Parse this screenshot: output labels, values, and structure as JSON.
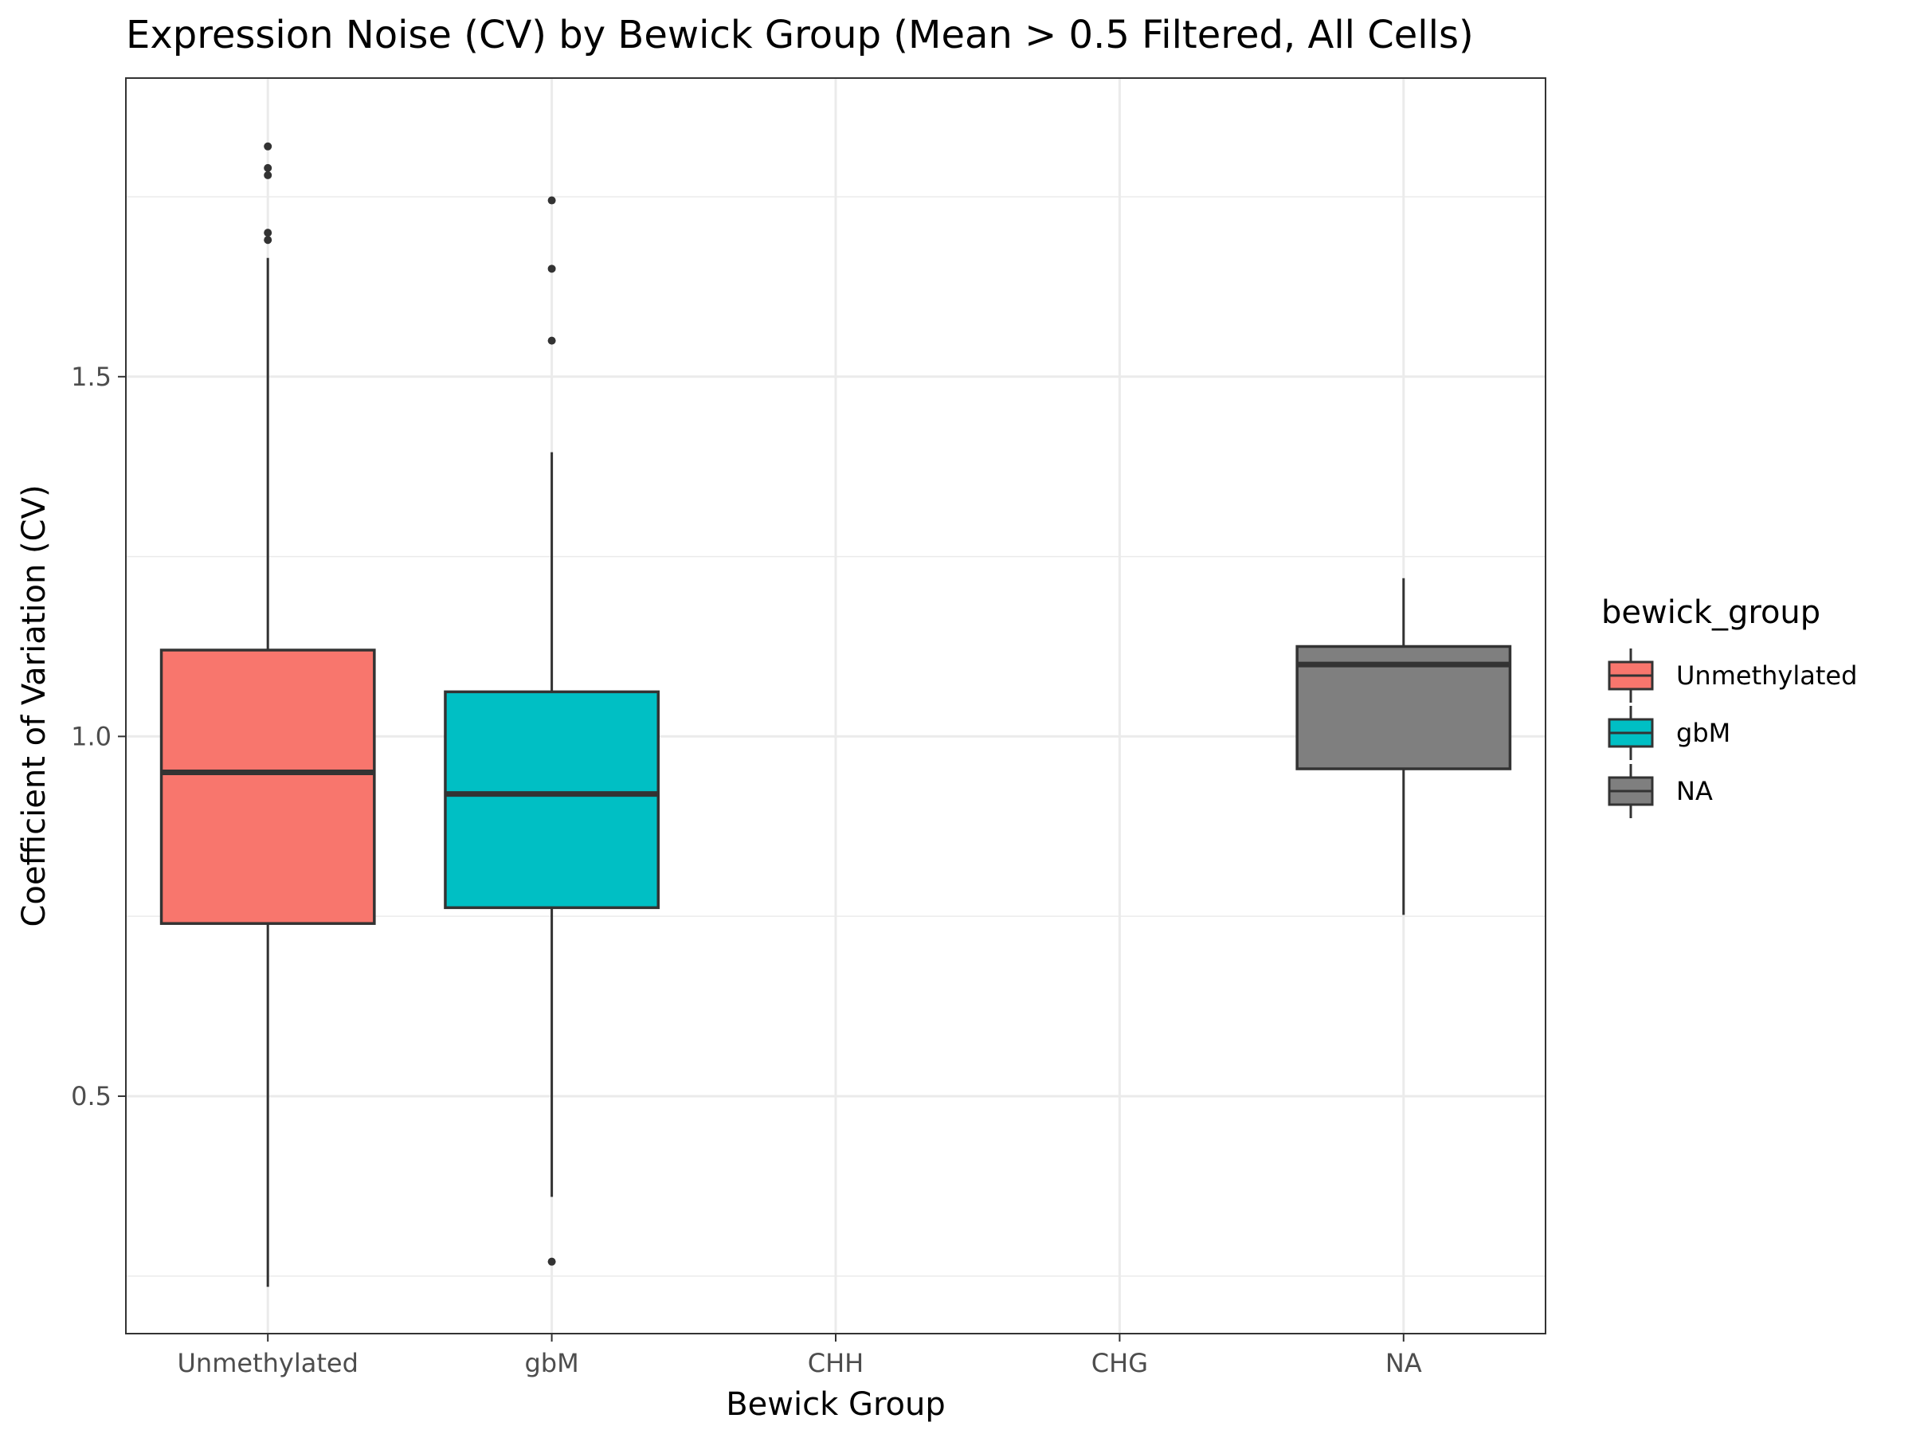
{
  "chart_data": {
    "type": "boxplot",
    "title": "Expression Noise (CV) by Bewick Group (Mean > 0.5 Filtered, All Cells)",
    "xlabel": "Bewick Group",
    "ylabel": "Coefficient of Variation (CV)",
    "categories": [
      "Unmethylated",
      "gbM",
      "CHH",
      "CHG",
      "NA"
    ],
    "ylim": [
      0.17,
      1.915
    ],
    "y_major_ticks": [
      0.5,
      1.0,
      1.5
    ],
    "y_tick_labels": [
      "0.5",
      "1.0",
      "1.5"
    ],
    "y_minor_gridlines": [
      0.25,
      0.75,
      1.25,
      1.75
    ],
    "grid": true,
    "boxes": [
      {
        "category": "Unmethylated",
        "group": "Unmethylated",
        "whisker_low": 0.235,
        "q1": 0.74,
        "median": 0.95,
        "q3": 1.12,
        "whisker_high": 1.665,
        "outliers": [
          1.69,
          1.7,
          1.78,
          1.79,
          1.82
        ]
      },
      {
        "category": "gbM",
        "group": "gbM",
        "whisker_low": 0.36,
        "q1": 0.762,
        "median": 0.92,
        "q3": 1.062,
        "whisker_high": 1.395,
        "outliers": [
          0.27,
          1.55,
          1.65,
          1.745
        ]
      },
      {
        "category": "NA",
        "group": "NA",
        "whisker_low": 0.752,
        "q1": 0.955,
        "median": 1.1,
        "q3": 1.125,
        "whisker_high": 1.22,
        "outliers": []
      }
    ],
    "legend": {
      "title": "bewick_group",
      "position": "right",
      "entries": [
        {
          "label": "Unmethylated",
          "color": "#F8766D"
        },
        {
          "label": "gbM",
          "color": "#00BFC4"
        },
        {
          "label": "NA",
          "color": "#7F7F7F"
        }
      ]
    }
  }
}
